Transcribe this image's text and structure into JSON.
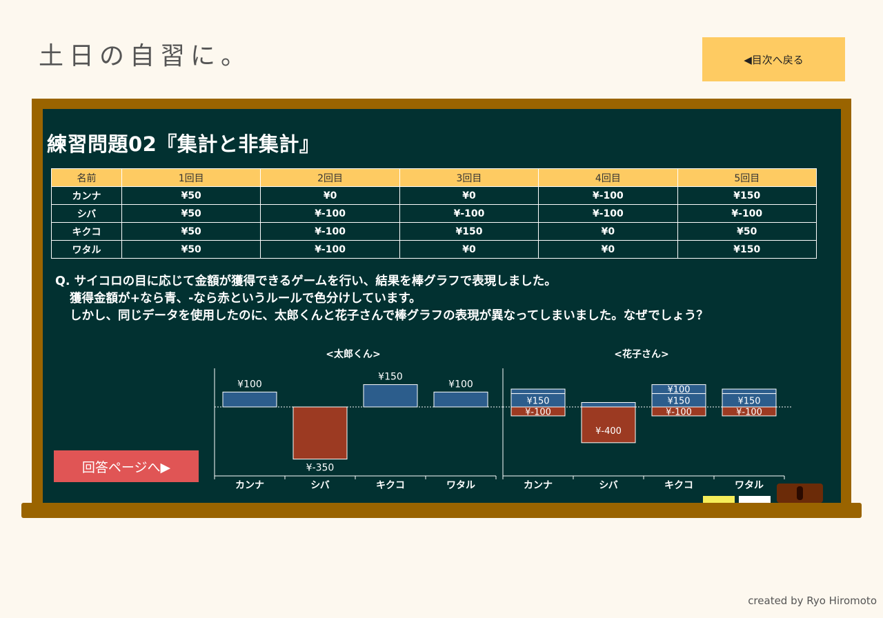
{
  "header": {
    "logo": "土日の自習に。",
    "back_label": "◀目次へ戻る"
  },
  "board": {
    "title": "練習問題02『集計と非集計』",
    "question": {
      "line1": "Q. サイコロの目に応じて金額が獲得できるゲームを行い、結果を棒グラフで表現しました。",
      "line2": "獲得金額が+なら青、-なら赤というルールで色分けしています。",
      "line3": "しかし、同じデータを使用したのに、太郎くんと花子さんで棒グラフの表現が異なってしまいました。なぜでしょう？"
    },
    "answer_label": "回答ページへ▶"
  },
  "table": {
    "headers": [
      "名前",
      "1回目",
      "2回目",
      "3回目",
      "4回目",
      "5回目"
    ],
    "rows": [
      [
        "カンナ",
        "¥50",
        "¥0",
        "¥0",
        "¥-100",
        "¥150"
      ],
      [
        "シバ",
        "¥50",
        "¥-100",
        "¥-100",
        "¥-100",
        "¥-100"
      ],
      [
        "キクコ",
        "¥50",
        "¥-100",
        "¥150",
        "¥0",
        "¥50"
      ],
      [
        "ワタル",
        "¥50",
        "¥-100",
        "¥0",
        "¥0",
        "¥150"
      ]
    ]
  },
  "colors": {
    "positive": "#2c5d8c",
    "negative": "#9c3a22",
    "board": "#023131"
  },
  "chart_data": [
    {
      "type": "bar",
      "title": "<太郎くん>",
      "categories": [
        "カンナ",
        "シバ",
        "キクコ",
        "ワタル"
      ],
      "values": [
        100,
        -350,
        150,
        100
      ],
      "labels": [
        "¥100",
        "¥-350",
        "¥150",
        "¥100"
      ]
    },
    {
      "type": "bar",
      "title": "<花子さん>",
      "categories": [
        "カンナ",
        "シバ",
        "キクコ",
        "ワタル"
      ],
      "stacks": [
        [
          {
            "value": -100,
            "label": "¥-100"
          },
          {
            "value": 150,
            "label": "¥150"
          },
          {
            "value": 50,
            "label": ""
          }
        ],
        [
          {
            "value": -400,
            "label": "¥-400"
          },
          {
            "value": 50,
            "label": ""
          }
        ],
        [
          {
            "value": -100,
            "label": "¥-100"
          },
          {
            "value": 150,
            "label": "¥150"
          },
          {
            "value": 100,
            "label": "¥100"
          }
        ],
        [
          {
            "value": -100,
            "label": "¥-100"
          },
          {
            "value": 150,
            "label": "¥150"
          },
          {
            "value": 50,
            "label": ""
          }
        ]
      ]
    }
  ],
  "footer": {
    "credit": "created by Ryo Hiromoto"
  }
}
